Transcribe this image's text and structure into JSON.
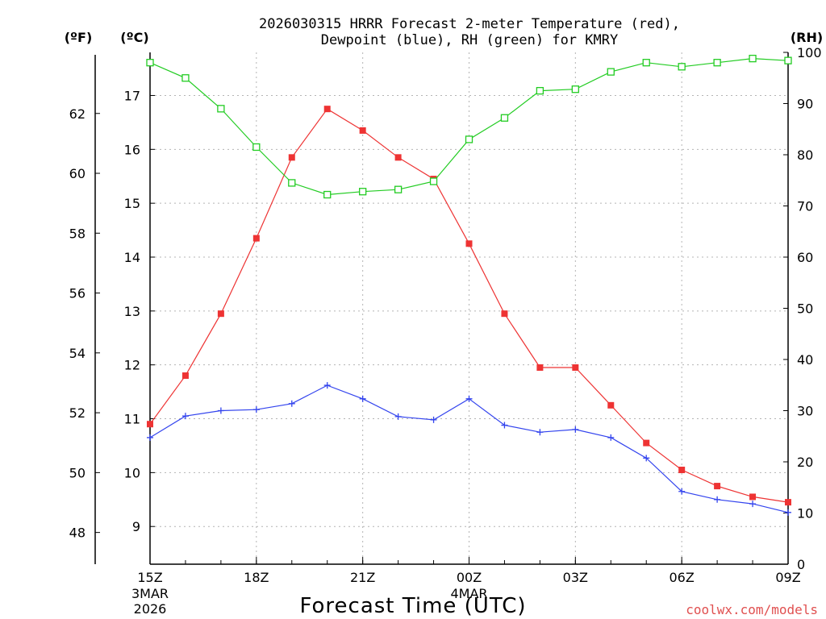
{
  "chart_data": {
    "type": "line",
    "title_line1": "2026030315 HRRR Forecast 2-meter Temperature (red),",
    "title_line2": "Dewpoint (blue), RH (green) for KMRY",
    "xlabel": "Forecast Time (UTC)",
    "left_f_unit": "(ºF)",
    "left_c_unit": "(ºC)",
    "right_unit": "(RH)",
    "watermark": "coolwx.com/models",
    "x_hours": [
      0,
      1,
      2,
      3,
      4,
      5,
      6,
      7,
      8,
      9,
      10,
      11,
      12,
      13,
      14,
      15,
      16,
      17,
      18
    ],
    "x_ticks": [
      {
        "hour": 0,
        "label": "15Z",
        "sub1": "3MAR",
        "sub2": "2026"
      },
      {
        "hour": 3,
        "label": "18Z",
        "sub1": "",
        "sub2": ""
      },
      {
        "hour": 6,
        "label": "21Z",
        "sub1": "",
        "sub2": ""
      },
      {
        "hour": 9,
        "label": "00Z",
        "sub1": "4MAR",
        "sub2": ""
      },
      {
        "hour": 12,
        "label": "03Z",
        "sub1": "",
        "sub2": ""
      },
      {
        "hour": 15,
        "label": "06Z",
        "sub1": "",
        "sub2": ""
      },
      {
        "hour": 18,
        "label": "09Z",
        "sub1": "",
        "sub2": ""
      }
    ],
    "c_range": [
      8.3,
      17.8
    ],
    "c_ticks": [
      9,
      10,
      11,
      12,
      13,
      14,
      15,
      16,
      17
    ],
    "f_ticks": [
      48,
      50,
      52,
      54,
      56,
      58,
      60,
      62
    ],
    "rh_range": [
      0,
      100
    ],
    "rh_ticks": [
      0,
      10,
      20,
      30,
      40,
      50,
      60,
      70,
      80,
      90,
      100
    ],
    "series": [
      {
        "name": "Temperature",
        "axis": "C",
        "color": "#ee3333",
        "marker": "filled-square",
        "values": [
          10.9,
          11.8,
          12.95,
          14.35,
          15.85,
          16.75,
          16.35,
          15.85,
          15.45,
          14.25,
          12.95,
          11.95,
          11.95,
          11.25,
          10.55,
          10.05,
          9.75,
          9.55,
          9.45
        ]
      },
      {
        "name": "Dewpoint",
        "axis": "C",
        "color": "#3344ee",
        "marker": "plus",
        "values": [
          10.65,
          11.05,
          11.15,
          11.17,
          11.28,
          11.62,
          11.37,
          11.04,
          10.98,
          11.37,
          10.88,
          10.75,
          10.8,
          10.65,
          10.27,
          9.65,
          9.5,
          9.42,
          9.26
        ]
      },
      {
        "name": "RH",
        "axis": "RH",
        "color": "#22cc22",
        "marker": "open-square",
        "values": [
          98,
          95,
          89,
          81.5,
          74.5,
          72.2,
          72.8,
          73.2,
          74.8,
          83,
          87.2,
          92.5,
          92.8,
          96.2,
          98,
          97.2,
          98,
          98.8,
          98.4
        ]
      }
    ]
  }
}
